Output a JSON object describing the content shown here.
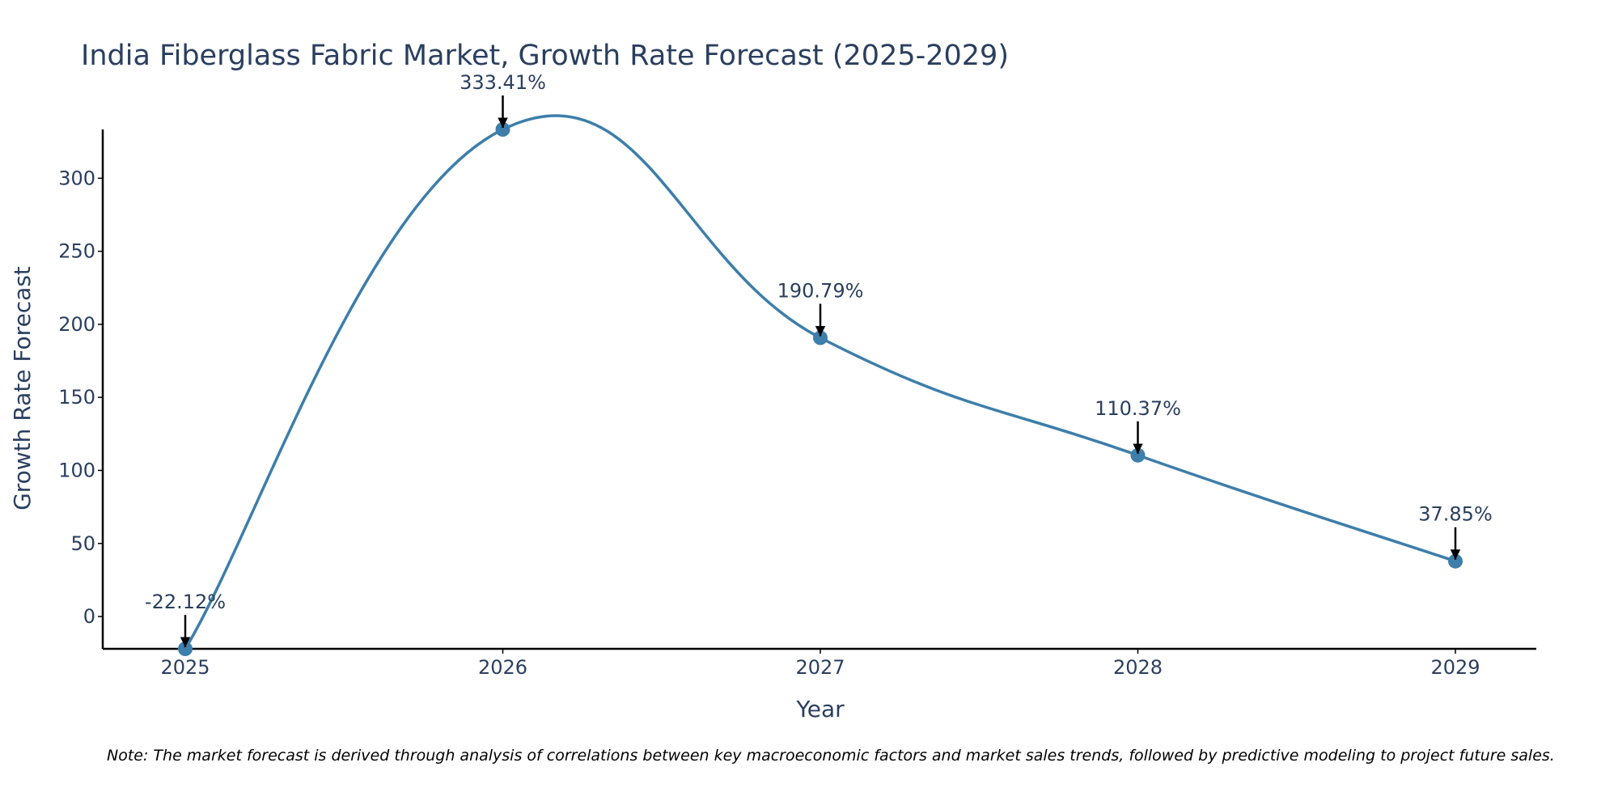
{
  "chart_data": {
    "type": "line",
    "title": "India Fiberglass Fabric Market, Growth Rate Forecast (2025-2029)",
    "xlabel": "Year",
    "ylabel": "Growth Rate Forecast",
    "categories": [
      "2025",
      "2026",
      "2027",
      "2028",
      "2029"
    ],
    "series": [
      {
        "name": "Growth Rate Forecast",
        "values": [
          -22.12,
          333.41,
          190.79,
          110.37,
          37.85
        ]
      }
    ],
    "data_labels": [
      "-22.12%",
      "333.41%",
      "190.79%",
      "110.37%",
      "37.85%"
    ],
    "y_ticks": [
      0,
      50,
      100,
      150,
      200,
      250,
      300
    ],
    "ylim": [
      -22.12,
      333.41
    ],
    "line_color": "#3d7eaa",
    "grid": false,
    "note": "Note: The market forecast is derived through analysis of correlations between key macroeconomic factors and market sales trends, followed by predictive modeling to project future sales."
  }
}
